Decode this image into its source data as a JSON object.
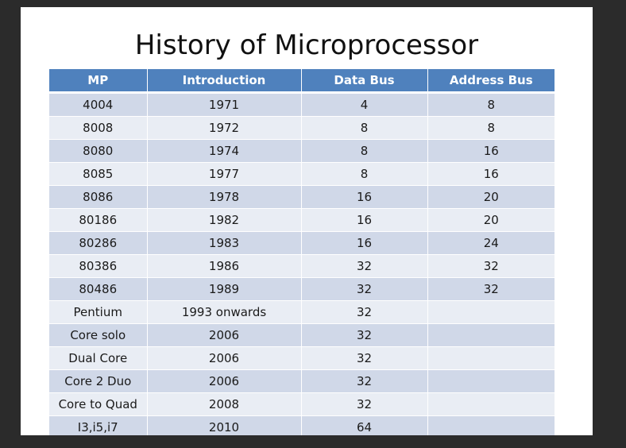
{
  "slide": {
    "title": "History of Microprocessor"
  },
  "table": {
    "headers": [
      "MP",
      "Introduction",
      "Data Bus",
      "Address Bus"
    ],
    "rows": [
      [
        "4004",
        "1971",
        "4",
        "8"
      ],
      [
        "8008",
        "1972",
        "8",
        "8"
      ],
      [
        "8080",
        "1974",
        "8",
        "16"
      ],
      [
        "8085",
        "1977",
        "8",
        "16"
      ],
      [
        "8086",
        "1978",
        "16",
        "20"
      ],
      [
        "80186",
        "1982",
        "16",
        "20"
      ],
      [
        "80286",
        "1983",
        "16",
        "24"
      ],
      [
        "80386",
        "1986",
        "32",
        "32"
      ],
      [
        "80486",
        "1989",
        "32",
        "32"
      ],
      [
        "Pentium",
        "1993 onwards",
        "32",
        ""
      ],
      [
        "Core solo",
        "2006",
        "32",
        ""
      ],
      [
        "Dual Core",
        "2006",
        "32",
        ""
      ],
      [
        "Core 2 Duo",
        "2006",
        "32",
        ""
      ],
      [
        "Core to Quad",
        "2008",
        "32",
        ""
      ],
      [
        "I3,i5,i7",
        "2010",
        "64",
        ""
      ]
    ]
  },
  "colors": {
    "header_bg": "#4f81bd",
    "row_odd": "#d0d8e8",
    "row_even": "#e9edf4",
    "frame_bg": "#2b2b2b"
  }
}
